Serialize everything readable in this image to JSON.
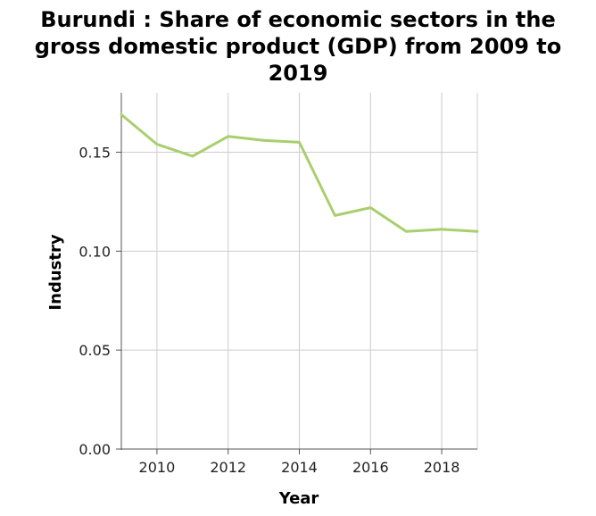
{
  "chart_data": {
    "type": "line",
    "title_lines": [
      "Burundi : Share of economic sectors in the",
      "gross domestic product (GDP) from 2009 to",
      "2019"
    ],
    "xlabel": "Year",
    "ylabel": "Industry",
    "xlim": [
      2009,
      2019
    ],
    "ylim": [
      0,
      0.18
    ],
    "x_ticks": [
      2010,
      2012,
      2014,
      2016,
      2018
    ],
    "y_ticks": [
      0.0,
      0.05,
      0.1,
      0.15
    ],
    "y_tick_labels": [
      "0.00",
      "0.05",
      "0.10",
      "0.15"
    ],
    "grid": true,
    "series": [
      {
        "color": "#a9cf6d",
        "x": [
          2009,
          2010,
          2011,
          2012,
          2013,
          2014,
          2015,
          2016,
          2017,
          2018,
          2019
        ],
        "values": [
          0.169,
          0.154,
          0.148,
          0.158,
          0.156,
          0.155,
          0.118,
          0.122,
          0.11,
          0.111,
          0.11
        ]
      }
    ]
  }
}
